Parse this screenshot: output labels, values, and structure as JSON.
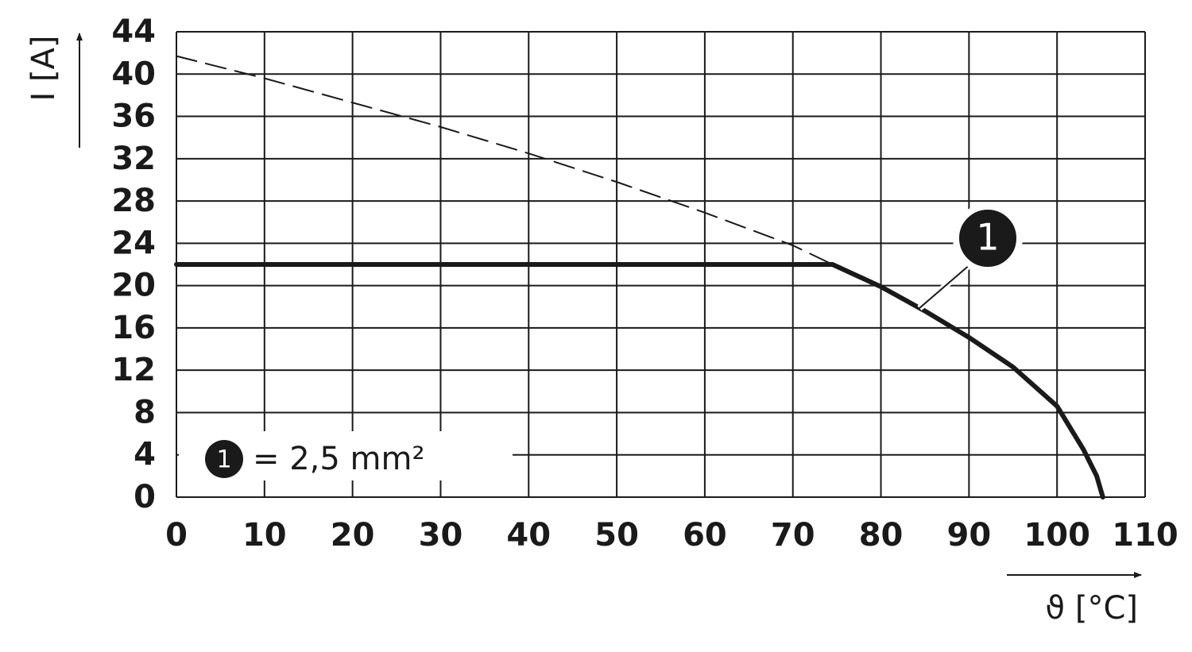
{
  "chart_data": {
    "type": "line",
    "y_label": "I [A]",
    "x_label": "ϑ [°C]",
    "annotation": "1",
    "legend": {
      "marker": "1",
      "text": "= 2,5 mm²"
    },
    "xlim": [
      0,
      110
    ],
    "xticks": [
      0,
      10,
      20,
      30,
      40,
      50,
      60,
      70,
      80,
      90,
      100,
      110
    ],
    "ylim": [
      0,
      44
    ],
    "yticks": [
      0,
      4,
      8,
      12,
      16,
      20,
      24,
      28,
      32,
      36,
      40,
      44
    ],
    "grid": true,
    "series": [
      {
        "color": "#1a1a1a",
        "dashed": true,
        "x": [
          0,
          10,
          20,
          30,
          40,
          50,
          60,
          70,
          74.5
        ],
        "values": [
          41.7,
          39.6,
          37.3,
          35.0,
          32.5,
          29.8,
          26.9,
          23.8,
          22
        ]
      },
      {
        "color": "#1a1a1a",
        "dashed": false,
        "x": [
          0,
          74.5,
          80,
          85,
          90,
          95,
          100,
          103,
          104.5,
          105.2
        ],
        "values": [
          22,
          22,
          19.9,
          17.6,
          15.1,
          12.3,
          8.6,
          4.5,
          2,
          0
        ]
      }
    ]
  }
}
